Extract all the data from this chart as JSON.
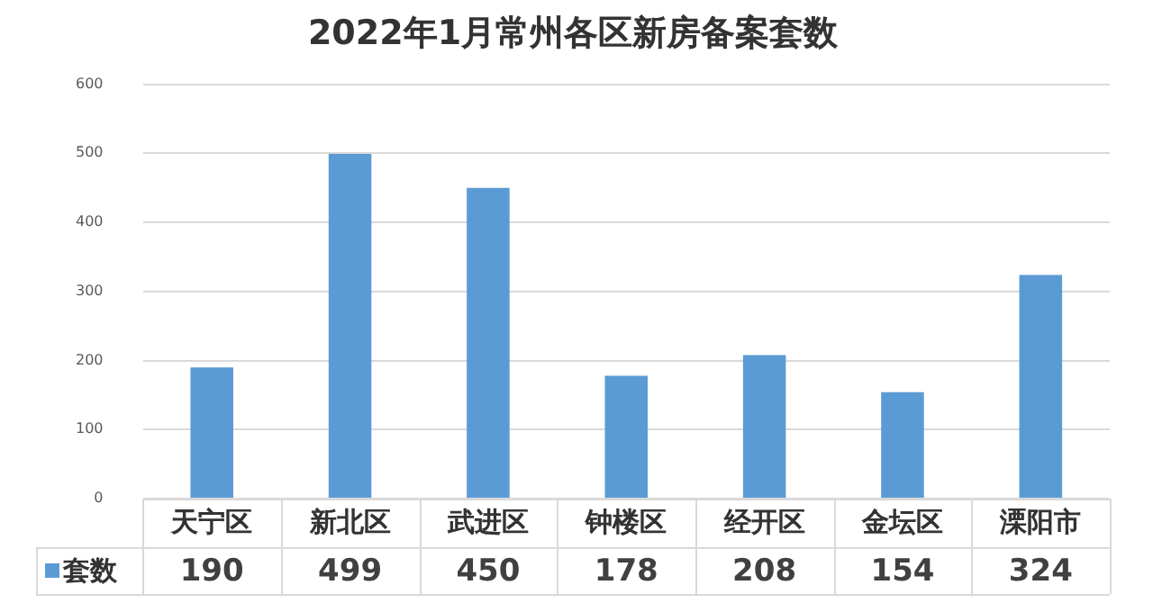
{
  "chart_data": {
    "type": "bar",
    "title": "2022年1月常州各区新房备案套数",
    "categories": [
      "天宁区",
      "新北区",
      "武进区",
      "钟楼区",
      "经开区",
      "金坛区",
      "溧阳市"
    ],
    "series": [
      {
        "name": "套数",
        "color": "#5b9bd5",
        "values": [
          190,
          499,
          450,
          178,
          208,
          154,
          324
        ]
      }
    ],
    "ylim": [
      0,
      600
    ],
    "yticks": [
      0,
      100,
      200,
      300,
      400,
      500,
      600
    ],
    "grid": "y",
    "legend": "bottom",
    "data_labels": true
  }
}
